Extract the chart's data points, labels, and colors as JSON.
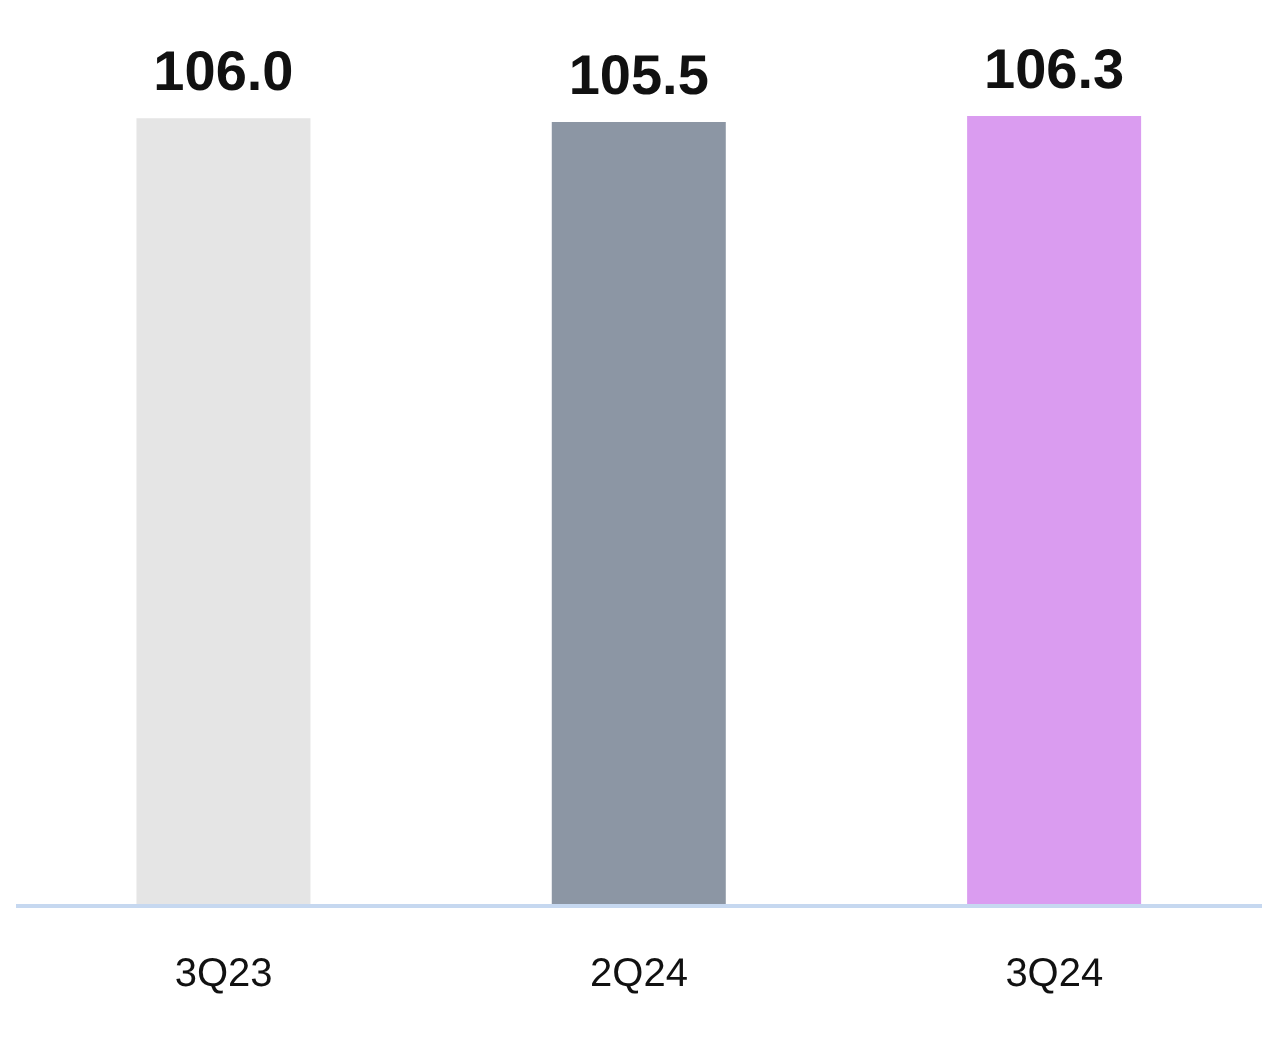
{
  "chart_data": {
    "type": "bar",
    "categories": [
      "3Q23",
      "2Q24",
      "3Q24"
    ],
    "values": [
      106.0,
      105.5,
      106.3
    ],
    "colors": [
      "#e5e5e5",
      "#8c96a4",
      "#da9cf0"
    ],
    "value_labels": [
      "106.0",
      "105.5",
      "106.3"
    ]
  }
}
